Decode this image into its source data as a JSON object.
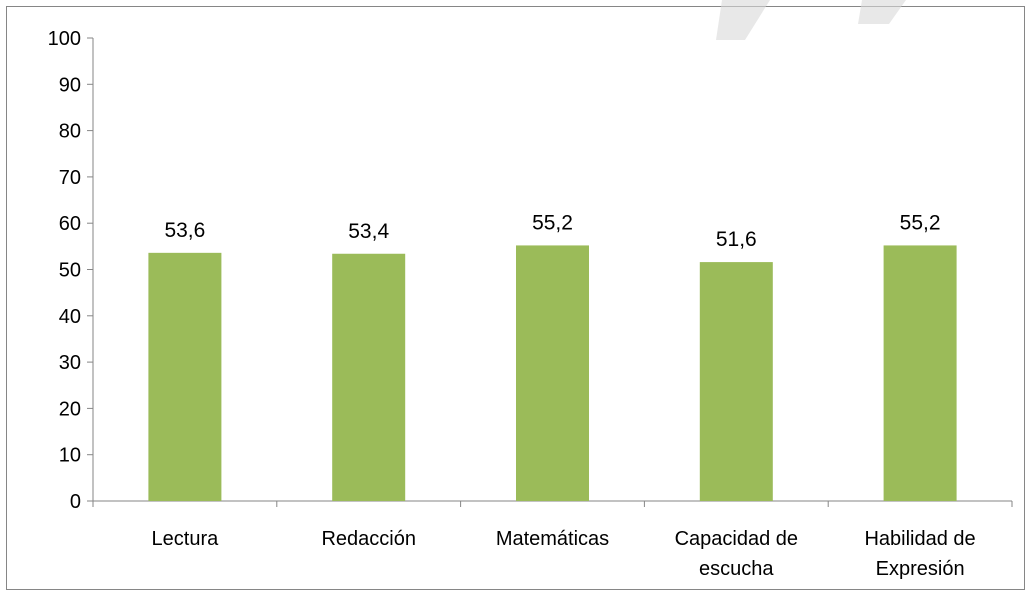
{
  "colors": {
    "bar": "#9BBB59",
    "axis": "#868686",
    "border": "#868686",
    "background": "#FFFFFF",
    "watermark": "#D9D9D9"
  },
  "chart_data": {
    "type": "bar",
    "categories": [
      [
        "Lectura"
      ],
      [
        "Redacción"
      ],
      [
        "Matemáticas"
      ],
      [
        "Capacidad de",
        "escucha"
      ],
      [
        "Habilidad de",
        "Expresión"
      ]
    ],
    "values": [
      53.6,
      53.4,
      55.2,
      51.6,
      55.2
    ],
    "data_labels": [
      "53,6",
      "53,4",
      "55,2",
      "51,6",
      "55,2"
    ],
    "ylim": [
      0,
      100
    ],
    "yticks": [
      0,
      10,
      20,
      30,
      40,
      50,
      60,
      70,
      80,
      90,
      100
    ],
    "grid": false,
    "legend": "none",
    "title": "",
    "xlabel": "",
    "ylabel": ""
  }
}
